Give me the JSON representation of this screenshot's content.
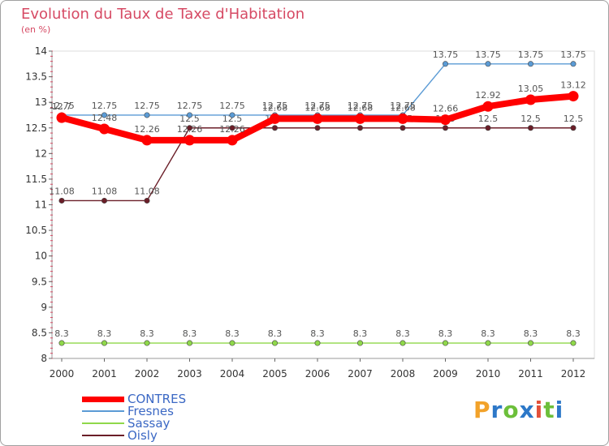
{
  "title": "Evolution du Taux de Taxe d'Habitation",
  "subtitle": "(en %)",
  "logo": {
    "text": "Proxiti",
    "colors": [
      "#f2a22a",
      "#2d78c8",
      "#6cbf3a",
      "#2d78c8",
      "#e2503a",
      "#6cbf3a",
      "#2d78c8"
    ]
  },
  "chart_data": {
    "type": "line",
    "title": "Evolution du Taux de Taxe d'Habitation",
    "subtitle": "(en %)",
    "xlabel": "",
    "ylabel": "",
    "x": [
      "2000",
      "2001",
      "2002",
      "2003",
      "2004",
      "2005",
      "2006",
      "2007",
      "2008",
      "2009",
      "2010",
      "2011",
      "2012"
    ],
    "ylim": [
      8,
      14
    ],
    "yticks": [
      "8",
      "8.5",
      "9",
      "9.5",
      "10",
      "10.5",
      "11",
      "11.5",
      "12",
      "12.5",
      "13",
      "13.5",
      "14"
    ],
    "grid": false,
    "legend_position": "bottom-left",
    "series": [
      {
        "name": "Oisly",
        "color": "#6b1e28",
        "values": [
          11.08,
          11.08,
          11.08,
          12.5,
          12.5,
          12.5,
          12.5,
          12.5,
          12.5,
          12.5,
          12.5,
          12.5,
          12.5
        ],
        "labels": [
          "11.08",
          "11.08",
          "11.08",
          "12.5",
          "12.5",
          "12.5",
          "12.5",
          "12.5",
          "12.5",
          "12.5",
          "12.5",
          "12.5",
          "12.5"
        ]
      },
      {
        "name": "Sassay",
        "color": "#8fd84a",
        "values": [
          8.3,
          8.3,
          8.3,
          8.3,
          8.3,
          8.3,
          8.3,
          8.3,
          8.3,
          8.3,
          8.3,
          8.3,
          8.3
        ],
        "labels": [
          "8.3",
          "8.3",
          "8.3",
          "8.3",
          "8.3",
          "8.3",
          "8.3",
          "8.3",
          "8.3",
          "8.3",
          "8.3",
          "8.3",
          "8.3"
        ]
      },
      {
        "name": "Fresnes",
        "color": "#5b9bd5",
        "values": [
          12.75,
          12.75,
          12.75,
          12.75,
          12.75,
          12.75,
          12.75,
          12.75,
          12.75,
          13.75,
          13.75,
          13.75,
          13.75
        ],
        "labels": [
          "12.75",
          "12.75",
          "12.75",
          "12.75",
          "12.75",
          "12.75",
          "12.75",
          "12.75",
          "12.75",
          "13.75",
          "13.75",
          "13.75",
          "13.75"
        ]
      },
      {
        "name": "CONTRES",
        "color": "#ff0000",
        "values": [
          12.7,
          12.48,
          12.26,
          12.26,
          12.26,
          12.68,
          12.68,
          12.68,
          12.68,
          12.66,
          12.92,
          13.05,
          13.12
        ],
        "labels": [
          "12.7",
          "12.48",
          "12.26",
          "12.26",
          "12.26",
          "12.68",
          "12.68",
          "12.68",
          "12.68",
          "12.66",
          "12.92",
          "13.05",
          "13.12"
        ]
      }
    ]
  },
  "legend": [
    {
      "name": "CONTRES",
      "color": "#ff0000",
      "weight": 7
    },
    {
      "name": "Fresnes",
      "color": "#5b9bd5",
      "weight": 2
    },
    {
      "name": "Sassay",
      "color": "#8fd84a",
      "weight": 2
    },
    {
      "name": "Oisly",
      "color": "#6b1e28",
      "weight": 2
    }
  ]
}
